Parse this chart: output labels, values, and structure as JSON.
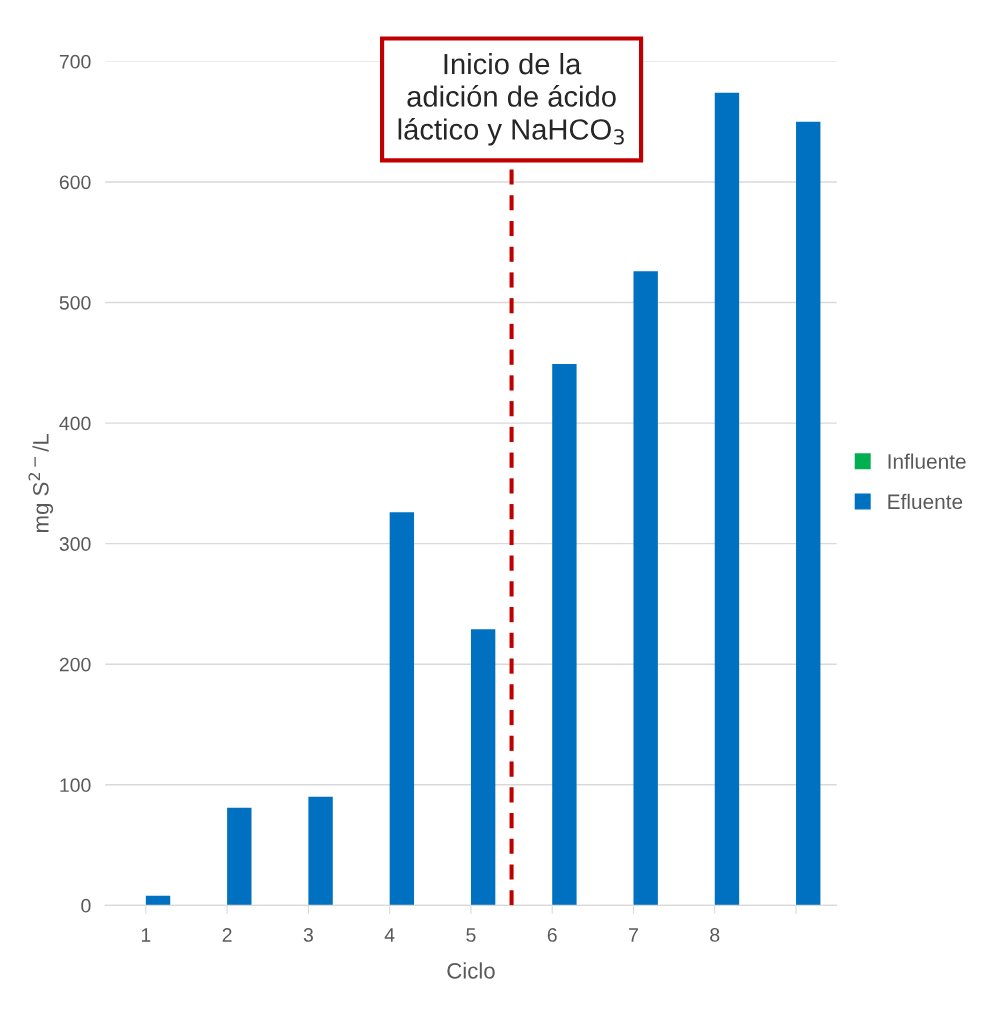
{
  "chart_data": {
    "type": "bar",
    "categories": [
      "1",
      "2",
      "3",
      "4",
      "5",
      "6",
      "7",
      "8",
      null
    ],
    "series": [
      {
        "name": "Influente",
        "color": "#00b050",
        "values": [
          null,
          null,
          null,
          null,
          null,
          null,
          null,
          null,
          null
        ]
      },
      {
        "name": "Efluente",
        "color": "#0070c0",
        "values": [
          8,
          81,
          90,
          326,
          229,
          449,
          526,
          674,
          650
        ]
      }
    ],
    "xlabel": "Ciclo",
    "ylabel": "mg S$^{2−}$/L",
    "ylim": [
      0,
      700
    ],
    "yticks": [
      0,
      100,
      200,
      300,
      400,
      500,
      600,
      700
    ],
    "grid": "y",
    "legend": "right",
    "annotations": [
      "Inicio de la\nadición de ácido\nláctico y NaHCO$_{3}$"
    ]
  }
}
